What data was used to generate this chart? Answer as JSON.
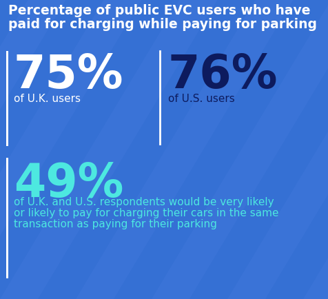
{
  "title_line1": "Percentage of public EVC users who have",
  "title_line2": "paid for charging while paying for parking",
  "title_color": "#ffffff",
  "title_fontsize": 13.5,
  "bg_color": "#3570d4",
  "stat1_value": "75%",
  "stat1_label": "of U.K. users",
  "stat1_value_color": "#ffffff",
  "stat1_label_color": "#ffffff",
  "stat2_value": "76%",
  "stat2_label": "of U.S. users",
  "stat2_value_color": "#0d1b5e",
  "stat2_label_color": "#0d1b5e",
  "stat3_value": "49%",
  "stat3_label_line1": "of U.K. and U.S. respondents would be very likely",
  "stat3_label_line2": "or likely to pay for charging their cars in the same",
  "stat3_label_line3": "transaction as paying for their parking",
  "stat3_value_color": "#4de8e0",
  "stat3_label_color": "#4de8e0",
  "divider_color": "#ffffff",
  "stripe_color": "#4a7de0",
  "stat_value_fontsize": 48,
  "stat_label_fontsize": 11,
  "stat3_label_fontsize": 11
}
